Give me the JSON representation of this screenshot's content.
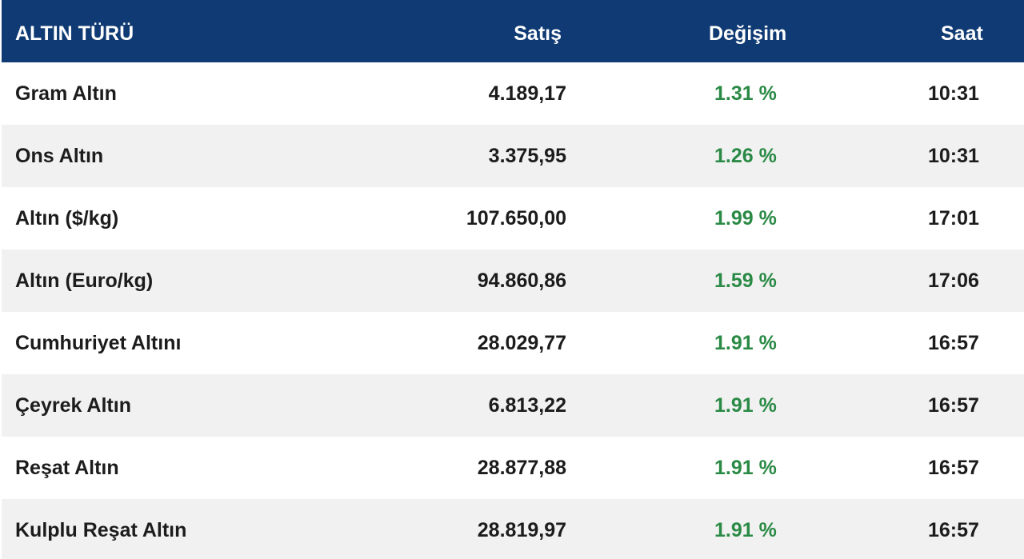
{
  "table": {
    "headers": {
      "name": "ALTIN TÜRÜ",
      "price": "Satış",
      "change": "Değişim",
      "time": "Saat"
    },
    "rows": [
      {
        "name": "Gram Altın",
        "price": "4.189,17",
        "change": "1.31 %",
        "time": "10:31"
      },
      {
        "name": "Ons Altın",
        "price": "3.375,95",
        "change": "1.26 %",
        "time": "10:31"
      },
      {
        "name": "Altın ($/kg)",
        "price": "107.650,00",
        "change": "1.99 %",
        "time": "17:01"
      },
      {
        "name": "Altın (Euro/kg)",
        "price": "94.860,86",
        "change": "1.59 %",
        "time": "17:06"
      },
      {
        "name": "Cumhuriyet Altını",
        "price": "28.029,77",
        "change": "1.91 %",
        "time": "16:57"
      },
      {
        "name": "Çeyrek Altın",
        "price": "6.813,22",
        "change": "1.91 %",
        "time": "16:57"
      },
      {
        "name": "Reşat Altın",
        "price": "28.877,88",
        "change": "1.91 %",
        "time": "16:57"
      },
      {
        "name": "Kulplu Reşat Altın",
        "price": "28.819,97",
        "change": "1.91 %",
        "time": "16:57"
      }
    ]
  },
  "colors": {
    "header_bg": "#0f3a73",
    "header_text": "#ffffff",
    "row_alt_bg": "#f1f1f1",
    "change_positive": "#2a8a45"
  }
}
